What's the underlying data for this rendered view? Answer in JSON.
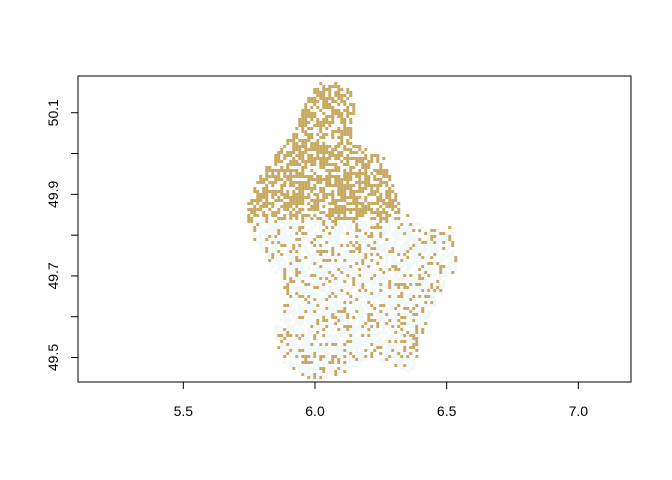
{
  "chart_data": {
    "type": "heatmap",
    "title": "",
    "xlabel": "",
    "ylabel": "",
    "xlim": [
      5.1,
      7.2
    ],
    "ylim": [
      49.44,
      50.19
    ],
    "grid": false,
    "legend": "none",
    "x_ticks": [
      {
        "value": 5.5,
        "label": "5.5"
      },
      {
        "value": 6.0,
        "label": "6.0"
      },
      {
        "value": 6.5,
        "label": "6.5"
      },
      {
        "value": 7.0,
        "label": "7.0"
      }
    ],
    "y_ticks": [
      {
        "value": 49.5,
        "label": "49.5"
      },
      {
        "value": 49.6,
        "label": ""
      },
      {
        "value": 49.7,
        "label": "49.7"
      },
      {
        "value": 49.8,
        "label": ""
      },
      {
        "value": 49.9,
        "label": "49.9"
      },
      {
        "value": 50.0,
        "label": ""
      },
      {
        "value": 50.1,
        "label": "50.1"
      }
    ],
    "classes": [
      {
        "color": "#c8a962"
      },
      {
        "color": "#f2f7f9"
      }
    ],
    "raster": {
      "lon_range": [
        5.72,
        6.55
      ],
      "lat_range": [
        49.44,
        50.19
      ],
      "outline_lonlat": [
        [
          6.02,
          50.18
        ],
        [
          6.13,
          50.17
        ],
        [
          6.15,
          50.12
        ],
        [
          6.14,
          50.03
        ],
        [
          6.26,
          49.99
        ],
        [
          6.33,
          49.86
        ],
        [
          6.43,
          49.81
        ],
        [
          6.52,
          49.82
        ],
        [
          6.54,
          49.72
        ],
        [
          6.48,
          49.66
        ],
        [
          6.42,
          49.58
        ],
        [
          6.37,
          49.46
        ],
        [
          6.23,
          49.5
        ],
        [
          6.1,
          49.46
        ],
        [
          5.99,
          49.44
        ],
        [
          5.88,
          49.49
        ],
        [
          5.84,
          49.56
        ],
        [
          5.9,
          49.65
        ],
        [
          5.84,
          49.72
        ],
        [
          5.74,
          49.82
        ],
        [
          5.75,
          49.9
        ],
        [
          5.83,
          49.98
        ],
        [
          5.93,
          50.06
        ],
        [
          5.96,
          50.12
        ]
      ],
      "north_area_lat_threshold": 49.84
    }
  }
}
